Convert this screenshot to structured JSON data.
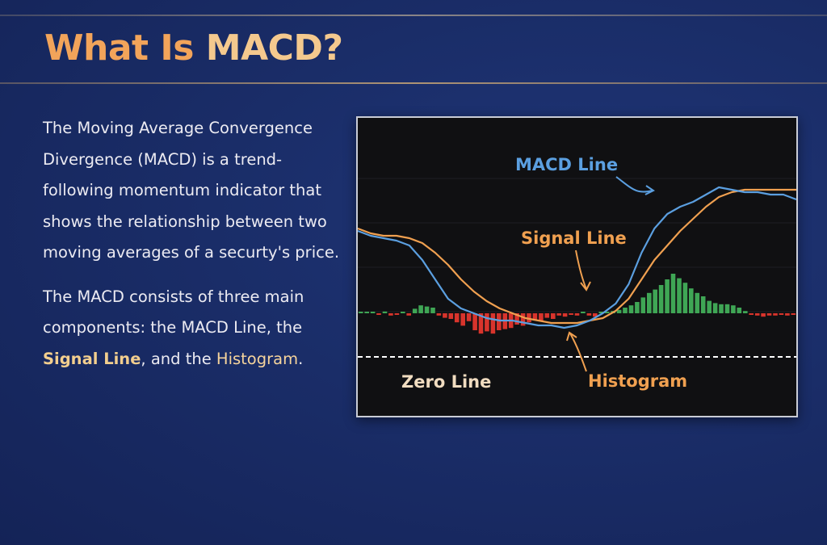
{
  "title": {
    "part1": "What Is",
    "part2": "MACD?"
  },
  "description": {
    "paragraph1": "The Moving Average Convergence Divergence (MACD) is a trend-following momentum indicator that shows the relationship between two moving averages of a securty's price.",
    "paragraph2_prefix": "The MACD consists of three main components: the MACD Line, the ",
    "paragraph2_signal": "Signal Line",
    "paragraph2_mid": ", and the ",
    "paragraph2_histogram": "Histogram",
    "paragraph2_suffix": "."
  },
  "chart_labels": {
    "macd_line": "MACD Line",
    "signal_line": "Signal Line",
    "zero_line": "Zero Line",
    "histogram": "Histogram"
  },
  "colors": {
    "title_primary": "#f2a45a",
    "title_secondary": "#f4c98e",
    "macd_line": "#5b9fe0",
    "signal_line": "#f0a050",
    "histogram_positive": "#3fa655",
    "histogram_negative": "#d8342c",
    "zero_line": "#ffffff",
    "background": "#1a2d68"
  },
  "chart_data": {
    "type": "line",
    "x": [
      0,
      4,
      8,
      12,
      16,
      20,
      24,
      28,
      32,
      36,
      40,
      44,
      48,
      52,
      56,
      60,
      64,
      68,
      72,
      76,
      80,
      84,
      88,
      92,
      96,
      100,
      104,
      108,
      112,
      116,
      120,
      124,
      128,
      132,
      136
    ],
    "series": [
      {
        "name": "MACD Line",
        "color": "#5b9fe0",
        "values": [
          5.2,
          5.0,
          4.9,
          4.8,
          4.6,
          4.0,
          3.2,
          2.4,
          2.0,
          1.8,
          1.6,
          1.5,
          1.5,
          1.4,
          1.3,
          1.3,
          1.2,
          1.3,
          1.5,
          1.8,
          2.2,
          3.0,
          4.3,
          5.3,
          5.9,
          6.2,
          6.4,
          6.7,
          7.0,
          6.9,
          6.8,
          6.8,
          6.7,
          6.7,
          6.5
        ]
      },
      {
        "name": "Signal Line",
        "color": "#f0a050",
        "values": [
          5.3,
          5.1,
          5.0,
          5.0,
          4.9,
          4.7,
          4.3,
          3.8,
          3.2,
          2.7,
          2.3,
          2.0,
          1.8,
          1.6,
          1.5,
          1.4,
          1.4,
          1.4,
          1.5,
          1.6,
          1.9,
          2.4,
          3.2,
          4.0,
          4.6,
          5.2,
          5.7,
          6.2,
          6.6,
          6.8,
          6.9,
          6.9,
          6.9,
          6.9,
          6.9
        ]
      }
    ],
    "histogram": [
      0.05,
      0.05,
      0.05,
      -0.05,
      0.08,
      -0.1,
      -0.05,
      0.05,
      -0.1,
      0.2,
      0.35,
      0.3,
      0.25,
      -0.1,
      -0.2,
      -0.25,
      -0.4,
      -0.55,
      -0.35,
      -0.75,
      -0.9,
      -0.8,
      -0.9,
      -0.75,
      -0.7,
      -0.65,
      -0.5,
      -0.55,
      -0.4,
      -0.3,
      -0.35,
      -0.2,
      -0.25,
      -0.1,
      -0.15,
      -0.05,
      -0.1,
      0.05,
      -0.1,
      -0.15,
      0.05,
      0.05,
      0.1,
      0.15,
      0.25,
      0.35,
      0.5,
      0.7,
      0.9,
      1.05,
      1.25,
      1.5,
      1.75,
      1.55,
      1.35,
      1.1,
      0.9,
      0.75,
      0.55,
      0.45,
      0.4,
      0.4,
      0.35,
      0.25,
      0.1,
      -0.05,
      -0.1,
      -0.15,
      -0.1,
      -0.1,
      -0.05,
      -0.1,
      -0.05
    ],
    "zero_line": 0,
    "annotations": [
      "MACD Line",
      "Signal Line",
      "Zero Line",
      "Histogram"
    ],
    "grid": false
  }
}
